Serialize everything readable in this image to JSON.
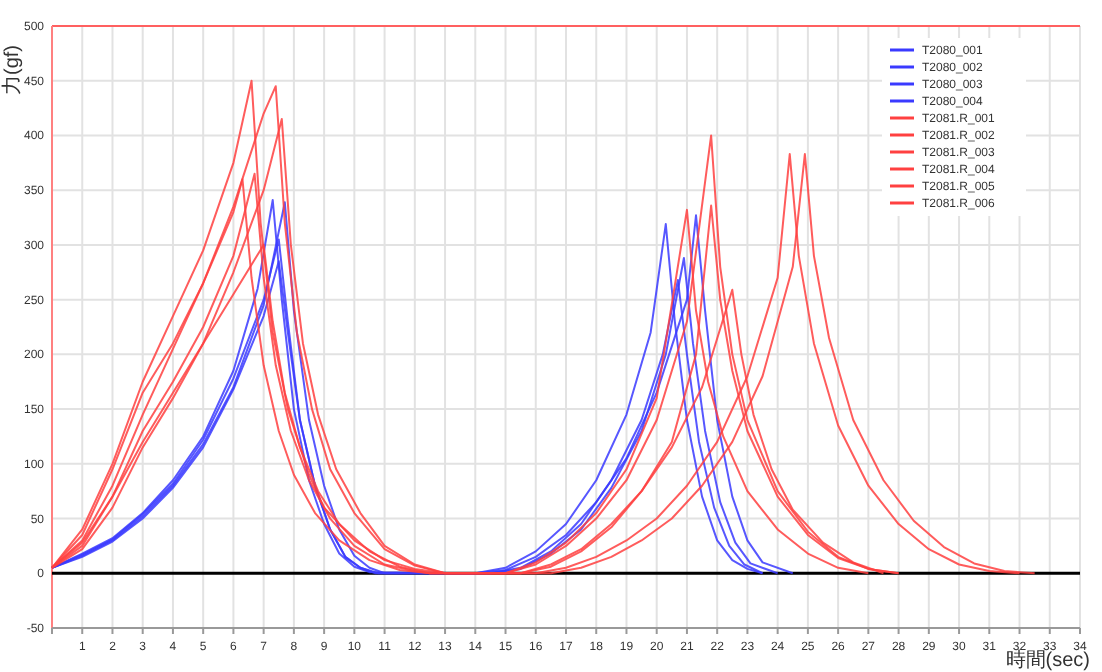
{
  "chart_data": {
    "type": "line",
    "xlabel": "時間(sec)",
    "ylabel": "力(gf)",
    "xlim": [
      0,
      34
    ],
    "xticks": [
      {
        "value": 0,
        "label": null
      },
      1,
      2,
      3,
      4,
      5,
      6,
      7,
      8,
      9,
      10,
      11,
      12,
      13,
      14,
      15,
      16,
      17,
      18,
      19,
      20,
      21,
      22,
      23,
      24,
      25,
      26,
      27,
      28,
      29,
      30,
      31,
      32,
      33,
      34
    ],
    "ylim": [
      -50,
      500
    ],
    "yticks": [
      -50,
      0,
      50,
      100,
      150,
      200,
      250,
      300,
      350,
      400,
      450,
      500
    ],
    "grid": true,
    "legend": "top right",
    "marker": "none",
    "line_style": "solid",
    "ref_lines": [
      {
        "axis": "y",
        "value": 0,
        "color": "#000000"
      }
    ],
    "series": [
      {
        "name": "T2080_001",
        "color": "#3a3aff",
        "x": [
          0,
          1,
          2,
          3,
          4,
          5,
          6,
          6.8,
          7.3,
          7.6,
          8,
          8.5,
          9,
          9.5,
          10,
          10.5,
          14,
          15,
          16,
          17,
          18,
          19,
          19.8,
          20.3,
          20.6,
          21,
          21.5,
          22,
          22.5,
          23,
          23.5
        ],
        "values": [
          5,
          18,
          32,
          55,
          85,
          125,
          185,
          260,
          341,
          250,
          150,
          85,
          45,
          18,
          6,
          1,
          0,
          5,
          20,
          45,
          85,
          145,
          220,
          319,
          230,
          140,
          70,
          30,
          12,
          4,
          0
        ]
      },
      {
        "name": "T2080_002",
        "color": "#3a3aff",
        "x": [
          0,
          1,
          2,
          3,
          4,
          5,
          6,
          7,
          7.7,
          8,
          8.5,
          9,
          9.5,
          10,
          10.5,
          11,
          14,
          15,
          16,
          17,
          18,
          19,
          20,
          21,
          21.3,
          21.6,
          22,
          22.5,
          23,
          23.5,
          24.5
        ],
        "values": [
          5,
          16,
          30,
          52,
          80,
          118,
          170,
          245,
          339,
          240,
          140,
          80,
          40,
          16,
          5,
          0,
          0,
          3,
          15,
          35,
          65,
          105,
          165,
          250,
          327,
          240,
          140,
          70,
          30,
          10,
          0
        ]
      },
      {
        "name": "T2080_003",
        "color": "#3a3aff",
        "x": [
          0,
          1,
          2,
          3,
          4,
          5,
          6,
          7,
          7.5,
          7.8,
          8.2,
          8.7,
          9.2,
          9.7,
          10.2,
          10.7,
          14.5,
          15.5,
          16.5,
          17.5,
          18.5,
          19.5,
          20.2,
          20.7,
          21,
          21.4,
          21.9,
          22.4,
          22.9,
          23.5
        ],
        "values": [
          5,
          17,
          31,
          54,
          82,
          122,
          178,
          250,
          305,
          230,
          140,
          80,
          40,
          15,
          5,
          0,
          0,
          5,
          20,
          45,
          85,
          140,
          200,
          268,
          200,
          120,
          60,
          25,
          8,
          0
        ]
      },
      {
        "name": "T2080_004",
        "color": "#3a3aff",
        "x": [
          0,
          1,
          2,
          3,
          4,
          5,
          6,
          7,
          7.5,
          7.8,
          8.2,
          8.7,
          9.2,
          9.7,
          10.2,
          10.8,
          14.5,
          15.5,
          16.5,
          17.5,
          18.5,
          19.5,
          20.3,
          20.9,
          21.2,
          21.6,
          22.1,
          22.6,
          23.1,
          24
        ],
        "values": [
          5,
          15,
          29,
          50,
          78,
          115,
          168,
          235,
          285,
          220,
          140,
          80,
          40,
          15,
          5,
          0,
          0,
          4,
          18,
          40,
          78,
          130,
          200,
          288,
          210,
          130,
          65,
          28,
          9,
          0
        ]
      },
      {
        "name": "T2081.R_001",
        "color": "#ff4040",
        "x": [
          0,
          1,
          2,
          3,
          4,
          5,
          6,
          6.6,
          6.9,
          7.3,
          7.8,
          8.5,
          9,
          10,
          11,
          12,
          13,
          15,
          16,
          17,
          18,
          19,
          20,
          21,
          21.8,
          22.1,
          22.5,
          23,
          24,
          25,
          26,
          27,
          28
        ],
        "values": [
          5,
          40,
          100,
          175,
          235,
          295,
          375,
          450,
          320,
          220,
          150,
          90,
          60,
          30,
          12,
          4,
          0,
          0,
          8,
          25,
          50,
          85,
          140,
          230,
          400,
          280,
          200,
          140,
          75,
          38,
          15,
          4,
          0
        ]
      },
      {
        "name": "T2081.R_002",
        "color": "#ff4040",
        "x": [
          0,
          1,
          2,
          3,
          4,
          5,
          6,
          7,
          7.4,
          7.7,
          8.1,
          8.6,
          9.2,
          10,
          11,
          12,
          13,
          15.5,
          16.5,
          17.5,
          18.5,
          19.5,
          20.5,
          21.5,
          22.5,
          22.8,
          23.2,
          23.8,
          24.5,
          25.5,
          26.5,
          27.5
        ],
        "values": [
          5,
          30,
          80,
          145,
          205,
          265,
          335,
          420,
          445,
          320,
          220,
          150,
          95,
          55,
          22,
          7,
          0,
          0,
          8,
          22,
          45,
          75,
          115,
          170,
          259,
          200,
          145,
          95,
          58,
          28,
          10,
          0
        ]
      },
      {
        "name": "T2081.R_003",
        "color": "#ff4040",
        "x": [
          0,
          1,
          2,
          3,
          4,
          5,
          6,
          7,
          7.6,
          7.9,
          8.3,
          8.8,
          9.4,
          10.2,
          11,
          12,
          13,
          16,
          17,
          18,
          19,
          20,
          21,
          22,
          23,
          24,
          24.4,
          24.7,
          25.2,
          26,
          27,
          28,
          29,
          30,
          31,
          32
        ],
        "values": [
          5,
          22,
          60,
          115,
          160,
          210,
          275,
          350,
          415,
          300,
          210,
          145,
          95,
          55,
          25,
          8,
          0,
          0,
          5,
          15,
          30,
          50,
          80,
          120,
          180,
          270,
          383,
          290,
          210,
          135,
          80,
          45,
          22,
          8,
          2,
          0
        ]
      },
      {
        "name": "T2081.R_004",
        "color": "#ff4040",
        "x": [
          0,
          1,
          2,
          3,
          4,
          5,
          6,
          6.3,
          6.6,
          7,
          7.5,
          8,
          8.7,
          9.5,
          10.5,
          11.5,
          12.5,
          16.5,
          17.5,
          18.5,
          19.5,
          20.5,
          21.5,
          22.5,
          23.5,
          24.5,
          24.9,
          25.2,
          25.7,
          26.5,
          27.5,
          28.5,
          29.5,
          30.5,
          31.5,
          32.5
        ],
        "values": [
          5,
          35,
          95,
          165,
          210,
          265,
          330,
          360,
          270,
          190,
          130,
          90,
          55,
          30,
          12,
          3,
          0,
          0,
          5,
          15,
          30,
          50,
          80,
          120,
          180,
          280,
          383,
          290,
          215,
          140,
          85,
          48,
          24,
          9,
          2,
          0
        ]
      },
      {
        "name": "T2081.R_005",
        "color": "#ff4040",
        "x": [
          0,
          1,
          2,
          3,
          4,
          5,
          6,
          6.7,
          7,
          7.4,
          7.9,
          8.5,
          9.2,
          10,
          11,
          12,
          12.5,
          15,
          16,
          17,
          18,
          19,
          20,
          21,
          21.3,
          21.7,
          22.2,
          23,
          24,
          25,
          26,
          27
        ],
        "values": [
          5,
          25,
          70,
          130,
          175,
          225,
          290,
          365,
          270,
          190,
          130,
          85,
          50,
          25,
          8,
          2,
          0,
          0,
          10,
          28,
          55,
          95,
          160,
          332,
          240,
          175,
          125,
          75,
          40,
          18,
          5,
          0
        ]
      },
      {
        "name": "T2081.R_006",
        "color": "#ff4040",
        "x": [
          0,
          1,
          2,
          3,
          4,
          5,
          6,
          7,
          7.3,
          7.7,
          8.2,
          8.8,
          9.5,
          10.5,
          11.5,
          12.5,
          15.5,
          16.5,
          17.5,
          18.5,
          19.5,
          20.5,
          21.3,
          21.8,
          22.1,
          22.5,
          23,
          24,
          25,
          26,
          27,
          28
        ],
        "values": [
          5,
          28,
          70,
          120,
          165,
          210,
          255,
          300,
          230,
          165,
          115,
          75,
          45,
          20,
          6,
          0,
          0,
          6,
          20,
          42,
          75,
          120,
          200,
          336,
          250,
          185,
          130,
          70,
          35,
          14,
          4,
          0
        ]
      }
    ]
  }
}
